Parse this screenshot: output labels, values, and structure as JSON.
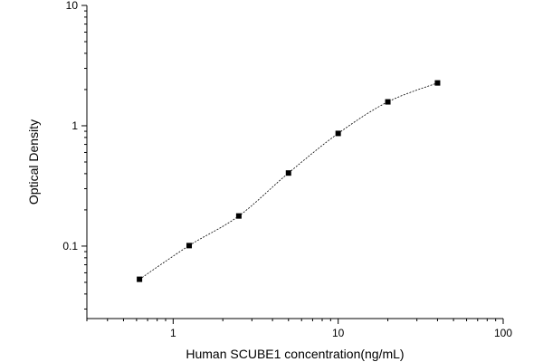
{
  "chart_data": {
    "type": "scatter",
    "xlabel": "Human SCUBE1 concentration(ng/mL)",
    "ylabel": "Optical Density",
    "xscale": "log",
    "yscale": "log",
    "xlim": [
      0.3,
      100
    ],
    "ylim": [
      0.025,
      10
    ],
    "xticks": [
      {
        "value": 1,
        "label": "1"
      },
      {
        "value": 10,
        "label": "10"
      },
      {
        "value": 100,
        "label": "100"
      }
    ],
    "yticks": [
      {
        "value": 0.1,
        "label": "0.1"
      },
      {
        "value": 1,
        "label": "1"
      },
      {
        "value": 10,
        "label": "10"
      }
    ],
    "grid": false,
    "legend": "none",
    "colors": {
      "marker": "#000000",
      "curve": "#000000",
      "axis": "#000000"
    },
    "series": [
      {
        "marker": "square",
        "points": [
          {
            "x": 0.625,
            "y": 0.053
          },
          {
            "x": 1.25,
            "y": 0.101
          },
          {
            "x": 2.5,
            "y": 0.178
          },
          {
            "x": 5,
            "y": 0.405
          },
          {
            "x": 10,
            "y": 0.864
          },
          {
            "x": 20,
            "y": 1.58
          },
          {
            "x": 40,
            "y": 2.27
          }
        ],
        "fit_curve": "dashed"
      }
    ]
  }
}
